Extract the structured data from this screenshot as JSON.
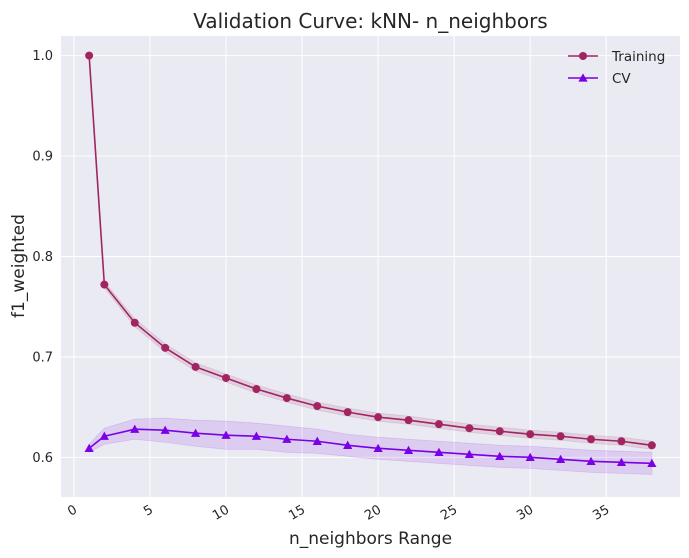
{
  "chart_data": {
    "type": "line",
    "title": "Validation Curve: kNN- n_neighbors",
    "xlabel": "n_neighbors Range",
    "ylabel": "f1_weighted",
    "xlim": [
      -0.85,
      39.85
    ],
    "ylim": [
      0.5605,
      1.0195
    ],
    "xticks": [
      0,
      5,
      10,
      15,
      20,
      25,
      30,
      35
    ],
    "yticks": [
      0.6,
      0.7,
      0.8,
      0.9,
      1.0
    ],
    "ytick_labels": [
      "0.6",
      "0.7",
      "0.8",
      "0.9",
      "1.0"
    ],
    "grid": true,
    "legend_position": "top-right",
    "x": [
      1,
      2,
      4,
      6,
      8,
      10,
      12,
      14,
      16,
      18,
      20,
      22,
      24,
      26,
      28,
      30,
      32,
      34,
      36,
      38
    ],
    "series": [
      {
        "name": "Training",
        "marker": "circle",
        "color": "#a02561",
        "values": [
          1.0,
          0.772,
          0.734,
          0.709,
          0.69,
          0.679,
          0.668,
          0.659,
          0.651,
          0.645,
          0.64,
          0.637,
          0.633,
          0.629,
          0.626,
          0.623,
          0.621,
          0.618,
          0.616,
          0.612
        ],
        "band": [
          0.001,
          0.003,
          0.004,
          0.004,
          0.004,
          0.004,
          0.004,
          0.004,
          0.004,
          0.004,
          0.004,
          0.004,
          0.004,
          0.004,
          0.004,
          0.004,
          0.004,
          0.004,
          0.004,
          0.004
        ]
      },
      {
        "name": "CV",
        "marker": "triangle",
        "color": "#7a00e6",
        "values": [
          0.609,
          0.621,
          0.628,
          0.627,
          0.624,
          0.622,
          0.621,
          0.618,
          0.616,
          0.612,
          0.609,
          0.607,
          0.605,
          0.603,
          0.601,
          0.6,
          0.598,
          0.596,
          0.595,
          0.594
        ],
        "band": [
          0.004,
          0.008,
          0.01,
          0.012,
          0.013,
          0.014,
          0.013,
          0.013,
          0.012,
          0.011,
          0.011,
          0.011,
          0.011,
          0.011,
          0.011,
          0.011,
          0.011,
          0.011,
          0.011,
          0.011
        ]
      }
    ]
  }
}
